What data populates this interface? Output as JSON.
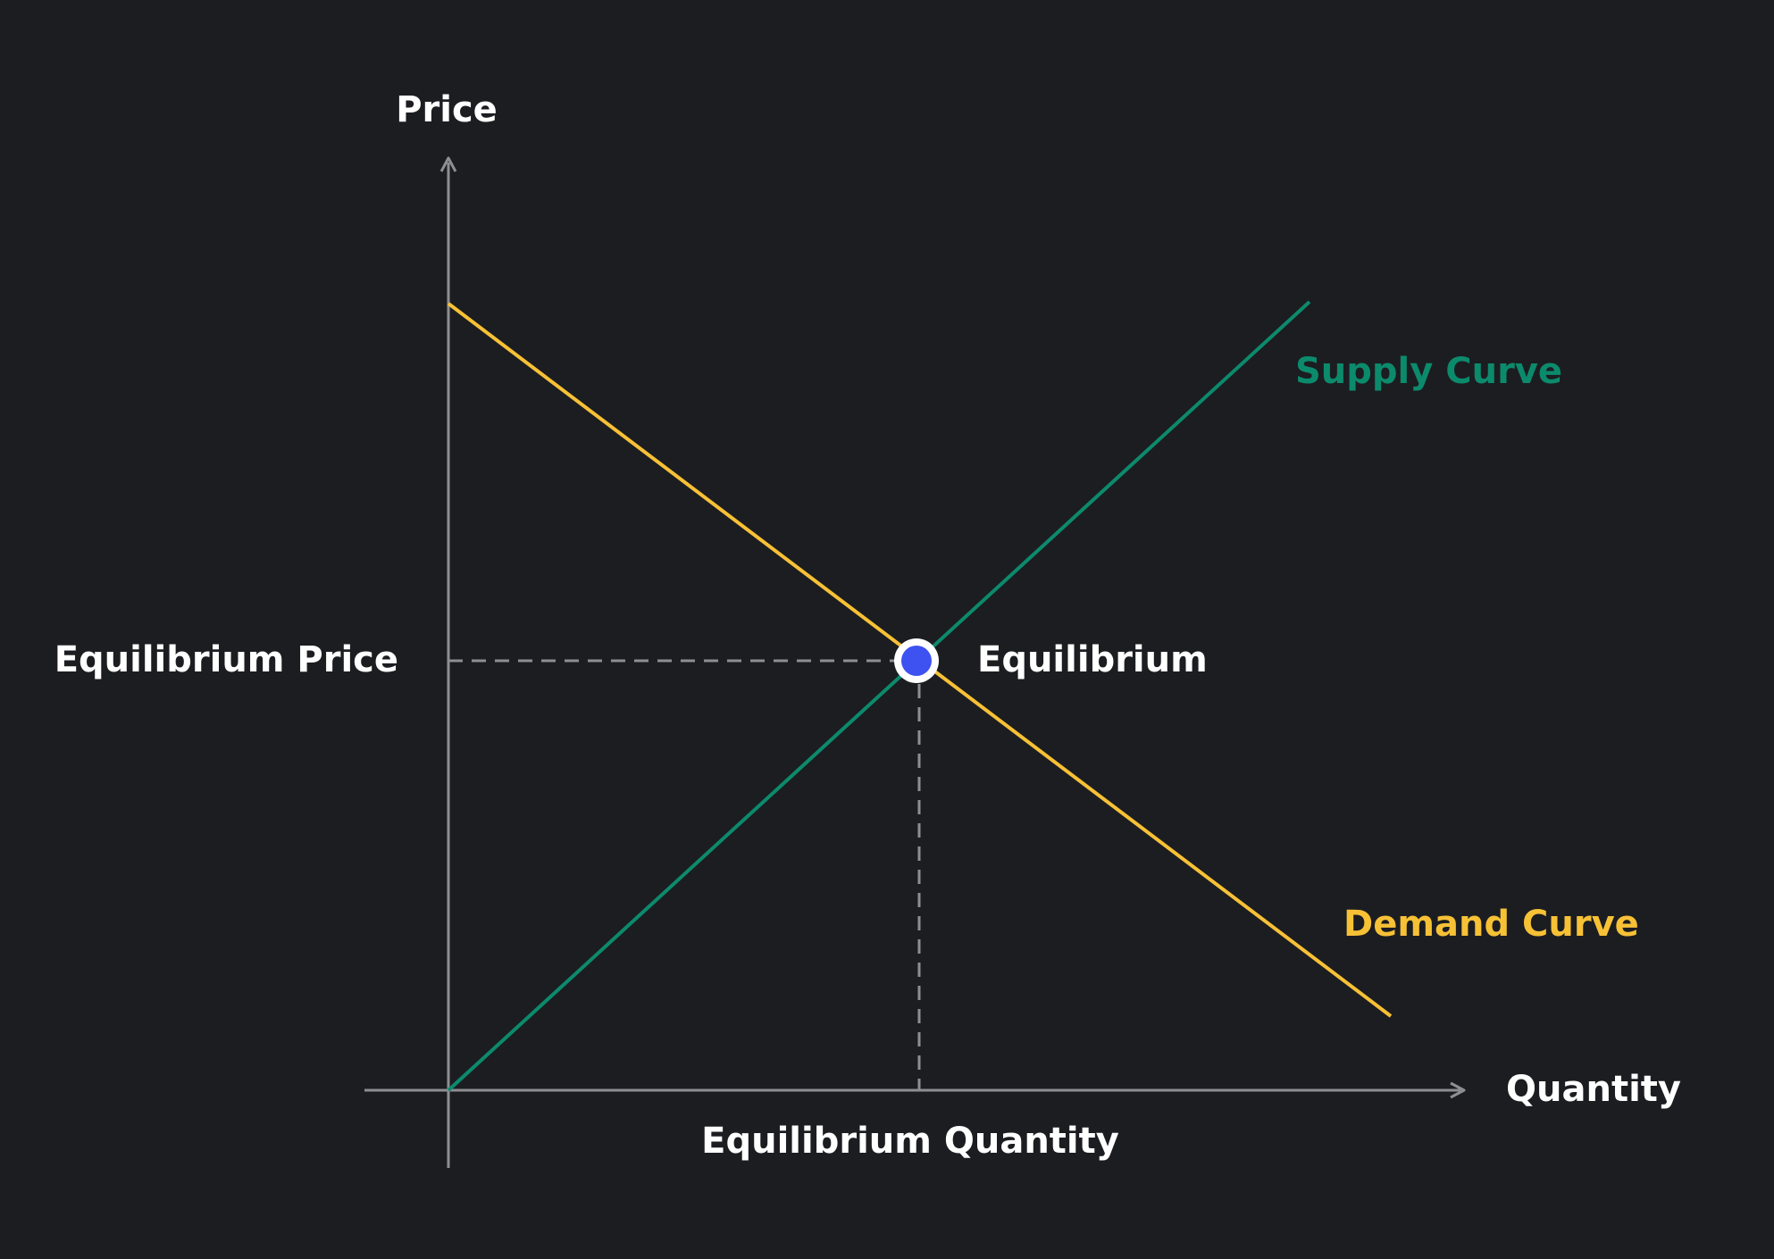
{
  "axes": {
    "y_label": "Price",
    "x_label": "Quantity"
  },
  "curves": {
    "supply": {
      "label": "Supply Curve",
      "color": "#0c8a6c"
    },
    "demand": {
      "label": "Demand Curve",
      "color": "#f7c136"
    }
  },
  "equilibrium": {
    "point_label": "Equilibrium",
    "price_label": "Equilibrium Price",
    "quantity_label": "Equilibrium Quantity",
    "marker_color": "#3d52f0",
    "marker_ring_color": "#ffffff"
  },
  "colors": {
    "background": "#1c1d21",
    "axis": "#8e8e93",
    "text": "#ffffff"
  },
  "icons": {
    "y_axis_arrow": "arrow-up-icon",
    "x_axis_arrow": "arrow-right-icon"
  }
}
